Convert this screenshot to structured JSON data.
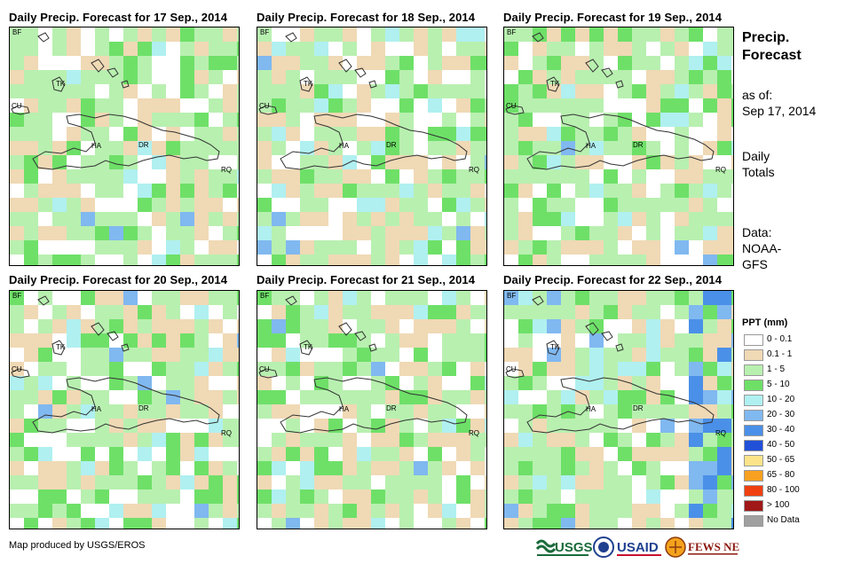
{
  "panels": [
    {
      "title": "Daily Precip. Forecast for 17 Sep., 2014",
      "seed": 17
    },
    {
      "title": "Daily Precip. Forecast for 18 Sep., 2014",
      "seed": 18
    },
    {
      "title": "Daily Precip. Forecast for 19 Sep., 2014",
      "seed": 19
    },
    {
      "title": "Daily Precip. Forecast for 20 Sep., 2014",
      "seed": 20
    },
    {
      "title": "Daily Precip. Forecast for 21 Sep., 2014",
      "seed": 21
    },
    {
      "title": "Daily Precip. Forecast for 22 Sep., 2014",
      "seed": 22
    }
  ],
  "map_labels": {
    "bf": "BF",
    "tk": "TK",
    "cu": "CU",
    "ha": "HA",
    "dr": "DR",
    "rq": "RQ"
  },
  "side": {
    "title_line1": "Precip.",
    "title_line2": "Forecast",
    "asof_line1": "as of:",
    "asof_line2": "Sep 17, 2014",
    "totals_line1": "Daily",
    "totals_line2": "Totals",
    "data_line1": "Data:",
    "data_line2": "NOAA-",
    "data_line3": "GFS"
  },
  "legend": {
    "title": "PPT (mm)",
    "items": [
      {
        "label": "0 - 0.1",
        "color": "#ffffff"
      },
      {
        "label": "0.1 - 1",
        "color": "#f0d9b5"
      },
      {
        "label": "1 - 5",
        "color": "#b8f0b0"
      },
      {
        "label": "5 - 10",
        "color": "#6ee068"
      },
      {
        "label": "10 - 20",
        "color": "#b0f0f0"
      },
      {
        "label": "20 - 30",
        "color": "#80b8f0"
      },
      {
        "label": "30 - 40",
        "color": "#4a90e8"
      },
      {
        "label": "40 - 50",
        "color": "#2050d8"
      },
      {
        "label": "50 - 65",
        "color": "#fce48a"
      },
      {
        "label": "65 - 80",
        "color": "#f8a020"
      },
      {
        "label": "80 - 100",
        "color": "#f04010"
      },
      {
        "label": "> 100",
        "color": "#a01818"
      },
      {
        "label": "No Data",
        "color": "#a0a0a0"
      }
    ]
  },
  "credit": "Map produced by USGS/EROS",
  "logos": {
    "usgs": "USGS",
    "usaid": "USAID",
    "fewsnet": "FEWS NET"
  }
}
